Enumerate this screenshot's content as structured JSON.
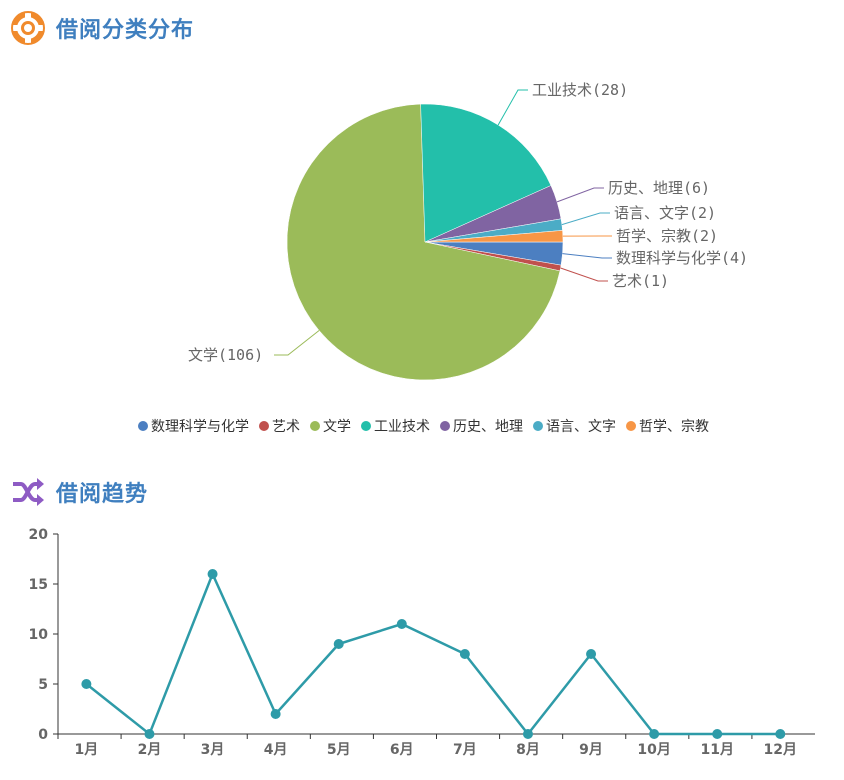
{
  "sections": {
    "pie_title": "借阅分类分布",
    "line_title": "借阅趋势"
  },
  "icons": {
    "pie_icon": "lifebuoy-icon",
    "line_icon": "shuffle-icon"
  },
  "chart_data": [
    {
      "type": "pie",
      "slices": [
        {
          "label": "数理科学与化学",
          "value": 4,
          "color": "#4c7fc1"
        },
        {
          "label": "艺术",
          "value": 1,
          "color": "#c0504d"
        },
        {
          "label": "文学",
          "value": 106,
          "color": "#9bbb59"
        },
        {
          "label": "工业技术",
          "value": 28,
          "color": "#23bfaa"
        },
        {
          "label": "历史、地理",
          "value": 6,
          "color": "#8064a2"
        },
        {
          "label": "语言、文字",
          "value": 2,
          "color": "#4bacc6"
        },
        {
          "label": "哲学、宗教",
          "value": 2,
          "color": "#f79646"
        }
      ],
      "legend_position": "bottom"
    },
    {
      "type": "line",
      "categories": [
        "1月",
        "2月",
        "3月",
        "4月",
        "5月",
        "6月",
        "7月",
        "8月",
        "9月",
        "10月",
        "11月",
        "12月"
      ],
      "series": [
        {
          "values": [
            5,
            0,
            16,
            2,
            9,
            11,
            8,
            0,
            8,
            0,
            0,
            0
          ],
          "color": "#2e9ba8"
        }
      ],
      "ylim": [
        0,
        20
      ],
      "yticks": [
        0,
        5,
        10,
        15,
        20
      ]
    }
  ]
}
